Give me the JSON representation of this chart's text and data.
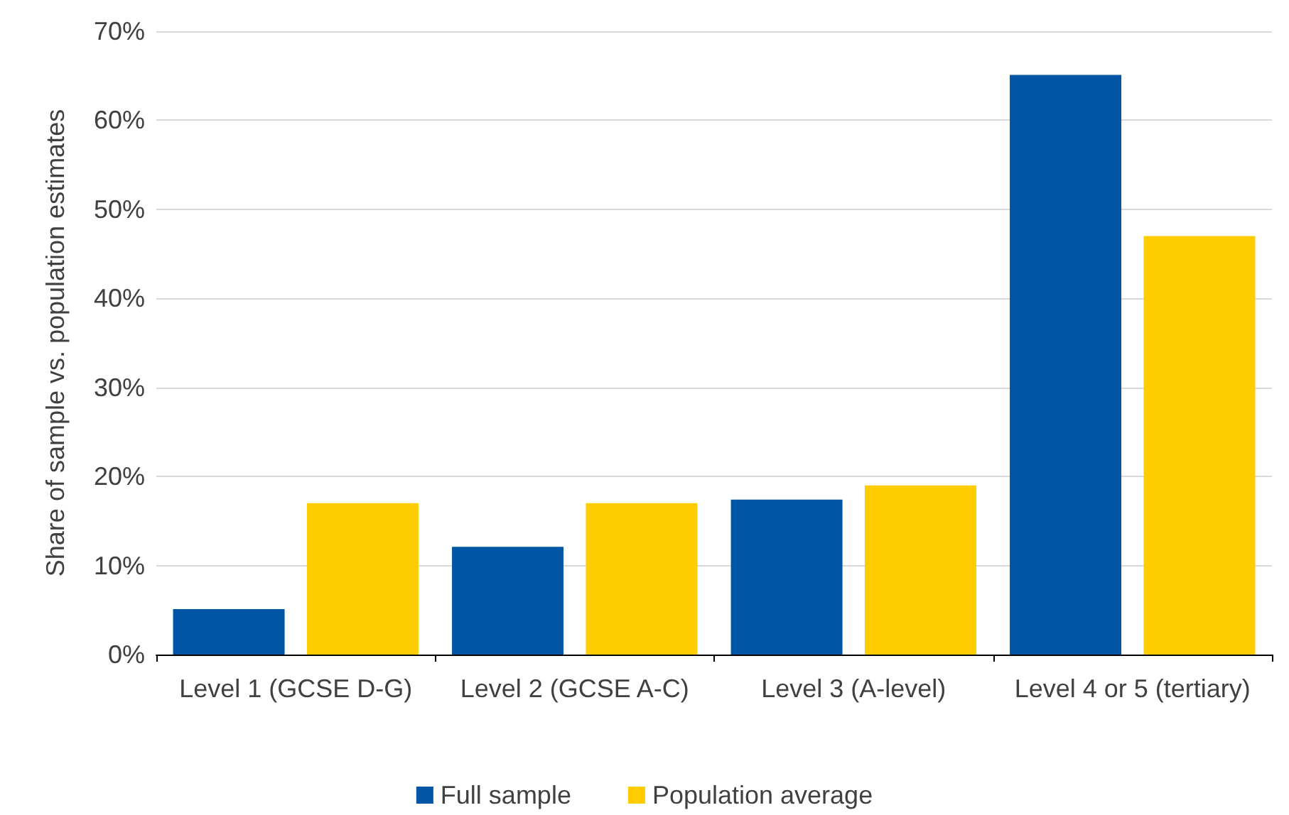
{
  "chart_data": {
    "type": "bar",
    "ylabel": "Share of sample vs. population estimates",
    "categories": [
      "Level 1 (GCSE D-G)",
      "Level 2 (GCSE A-C)",
      "Level 3 (A-level)",
      "Level 4 or 5 (tertiary)"
    ],
    "series": [
      {
        "name": "Full sample",
        "color": "#0055a4",
        "values": [
          5.1,
          12.1,
          17.4,
          65.1
        ]
      },
      {
        "name": "Population average",
        "color": "#ffcc00",
        "values": [
          17,
          17,
          19,
          47
        ]
      }
    ],
    "ylim": [
      0,
      70
    ],
    "yticks": [
      {
        "value": 0,
        "label": "0%"
      },
      {
        "value": 10,
        "label": "10%"
      },
      {
        "value": 20,
        "label": "20%"
      },
      {
        "value": 30,
        "label": "30%"
      },
      {
        "value": 40,
        "label": "40%"
      },
      {
        "value": 50,
        "label": "50%"
      },
      {
        "value": 60,
        "label": "60%"
      },
      {
        "value": 70,
        "label": "70%"
      }
    ],
    "grid": "y",
    "legend": "bottom"
  }
}
